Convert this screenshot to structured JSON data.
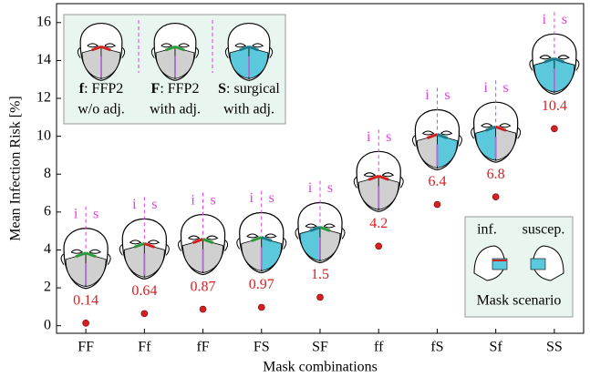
{
  "chart_data": {
    "type": "scatter",
    "x_label": "Mask combinations",
    "y_label": "Mean Infection Risk [%]",
    "categories": [
      "FF",
      "Ff",
      "fF",
      "FS",
      "SF",
      "ff",
      "fS",
      "Sf",
      "SS"
    ],
    "values": [
      0.14,
      0.64,
      0.87,
      0.97,
      1.5,
      4.2,
      6.4,
      6.8,
      10.4
    ],
    "color": "#d62020",
    "ylim": [
      -0.4,
      17
    ],
    "yticks": [
      0,
      2,
      4,
      6,
      8,
      10,
      12,
      14,
      16
    ],
    "face_labels": [
      "i",
      "s"
    ],
    "legend": [
      {
        "key": "f",
        "line1": ": FFP2",
        "line2": "w/o adj."
      },
      {
        "key": "F",
        "line1": ": FFP2",
        "line2": "with adj."
      },
      {
        "key": "S",
        "line1": ": surgical",
        "line2": "with adj."
      }
    ],
    "inset": {
      "infected": "inf.",
      "susceptible": "suscep.",
      "caption": "Mask scenario"
    }
  }
}
